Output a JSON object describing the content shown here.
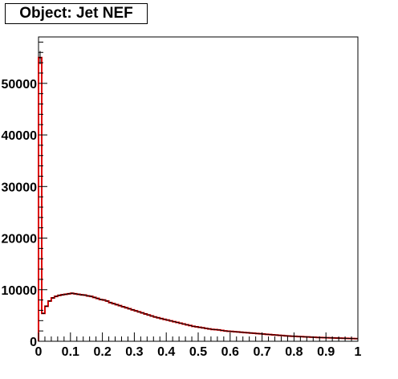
{
  "chart_data": {
    "type": "histogram",
    "title": "Object: Jet NEF",
    "xlabel": "",
    "ylabel": "",
    "xlim": [
      0,
      1
    ],
    "ylim": [
      0,
      59000
    ],
    "x_ticks": [
      "0",
      "0.1",
      "0.2",
      "0.3",
      "0.4",
      "0.5",
      "0.6",
      "0.7",
      "0.8",
      "0.9",
      "1"
    ],
    "y_ticks": [
      "0",
      "10000",
      "20000",
      "30000",
      "40000",
      "50000"
    ],
    "grid": false,
    "colors": {
      "data_markers": "#000000",
      "reference_line": "#dd0000",
      "frame": "#000000"
    },
    "series": [
      {
        "name": "",
        "bin_width": 0.01,
        "x": [
          0.005,
          0.015,
          0.025,
          0.035,
          0.045,
          0.055,
          0.065,
          0.075,
          0.085,
          0.095,
          0.105,
          0.115,
          0.125,
          0.135,
          0.145,
          0.155,
          0.165,
          0.175,
          0.185,
          0.195,
          0.205,
          0.215,
          0.225,
          0.235,
          0.245,
          0.255,
          0.265,
          0.275,
          0.285,
          0.295,
          0.305,
          0.315,
          0.325,
          0.335,
          0.345,
          0.355,
          0.365,
          0.375,
          0.385,
          0.395,
          0.405,
          0.415,
          0.425,
          0.435,
          0.445,
          0.455,
          0.465,
          0.475,
          0.485,
          0.495,
          0.505,
          0.515,
          0.525,
          0.535,
          0.545,
          0.555,
          0.565,
          0.575,
          0.585,
          0.595,
          0.605,
          0.615,
          0.625,
          0.635,
          0.645,
          0.655,
          0.665,
          0.675,
          0.685,
          0.695,
          0.705,
          0.715,
          0.725,
          0.735,
          0.745,
          0.755,
          0.765,
          0.775,
          0.785,
          0.795,
          0.805,
          0.815,
          0.825,
          0.835,
          0.845,
          0.855,
          0.865,
          0.875,
          0.885,
          0.895,
          0.905,
          0.915,
          0.925,
          0.935,
          0.945,
          0.955,
          0.965,
          0.975,
          0.985,
          0.995
        ],
        "values": [
          55000,
          5400,
          6800,
          7800,
          8400,
          8700,
          8900,
          9000,
          9100,
          9200,
          9300,
          9200,
          9100,
          9000,
          8950,
          8800,
          8700,
          8500,
          8300,
          8100,
          8000,
          7800,
          7500,
          7300,
          7100,
          6900,
          6700,
          6500,
          6300,
          6100,
          5900,
          5700,
          5500,
          5300,
          5100,
          4900,
          4700,
          4550,
          4400,
          4250,
          4100,
          3950,
          3800,
          3650,
          3500,
          3350,
          3200,
          3050,
          2900,
          2800,
          2700,
          2600,
          2500,
          2400,
          2300,
          2250,
          2200,
          2100,
          2000,
          1950,
          1900,
          1850,
          1800,
          1750,
          1700,
          1650,
          1600,
          1550,
          1500,
          1450,
          1400,
          1350,
          1300,
          1250,
          1200,
          1150,
          1100,
          1060,
          1020,
          980,
          950,
          920,
          890,
          860,
          830,
          800,
          770,
          740,
          720,
          700,
          680,
          660,
          640,
          620,
          600,
          580,
          560,
          540,
          520,
          500
        ]
      },
      {
        "name": "",
        "style": "line",
        "x": [
          0.005,
          0.015,
          0.025,
          0.035,
          0.045,
          0.055,
          0.065,
          0.075,
          0.085,
          0.095,
          0.105,
          0.115,
          0.125,
          0.135,
          0.145,
          0.155,
          0.165,
          0.175,
          0.185,
          0.195,
          0.205,
          0.215,
          0.225,
          0.235,
          0.245,
          0.255,
          0.265,
          0.275,
          0.285,
          0.295,
          0.305,
          0.315,
          0.325,
          0.335,
          0.345,
          0.355,
          0.365,
          0.375,
          0.385,
          0.395,
          0.405,
          0.415,
          0.425,
          0.435,
          0.445,
          0.455,
          0.465,
          0.475,
          0.485,
          0.495,
          0.505,
          0.515,
          0.525,
          0.535,
          0.545,
          0.555,
          0.565,
          0.575,
          0.585,
          0.595,
          0.605,
          0.615,
          0.625,
          0.635,
          0.645,
          0.655,
          0.665,
          0.675,
          0.685,
          0.695,
          0.705,
          0.715,
          0.725,
          0.735,
          0.745,
          0.755,
          0.765,
          0.775,
          0.785,
          0.795,
          0.805,
          0.815,
          0.825,
          0.835,
          0.845,
          0.855,
          0.865,
          0.875,
          0.885,
          0.895,
          0.905,
          0.915,
          0.925,
          0.935,
          0.945,
          0.955,
          0.965,
          0.975,
          0.985,
          0.995
        ],
        "values": [
          55000,
          5400,
          6800,
          7800,
          8400,
          8700,
          8900,
          9000,
          9100,
          9200,
          9300,
          9200,
          9100,
          9000,
          8950,
          8800,
          8700,
          8500,
          8300,
          8100,
          8000,
          7800,
          7500,
          7300,
          7100,
          6900,
          6700,
          6500,
          6300,
          6100,
          5900,
          5700,
          5500,
          5300,
          5100,
          4900,
          4700,
          4550,
          4400,
          4250,
          4100,
          3950,
          3800,
          3650,
          3500,
          3350,
          3200,
          3050,
          2900,
          2800,
          2700,
          2600,
          2500,
          2400,
          2300,
          2250,
          2200,
          2100,
          2000,
          1950,
          1900,
          1850,
          1800,
          1750,
          1700,
          1650,
          1600,
          1550,
          1500,
          1450,
          1400,
          1350,
          1300,
          1250,
          1200,
          1150,
          1100,
          1060,
          1020,
          980,
          950,
          920,
          890,
          860,
          830,
          800,
          770,
          740,
          720,
          700,
          680,
          660,
          640,
          620,
          600,
          580,
          560,
          540,
          520,
          500
        ]
      }
    ]
  }
}
